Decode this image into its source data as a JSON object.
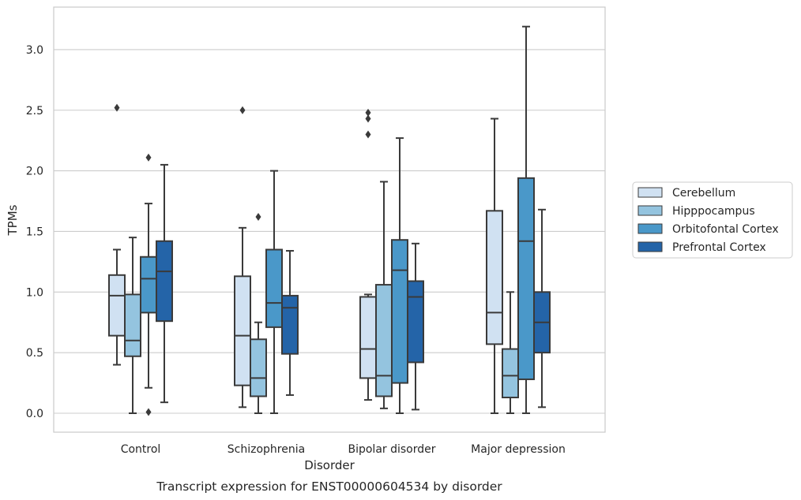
{
  "chart_data": {
    "type": "box",
    "xlabel": "Disorder",
    "ylabel": "TPMs",
    "caption": "Transcript expression for ENST00000604534 by disorder",
    "ylim": [
      -0.15,
      3.35
    ],
    "yticks": [
      "0.0",
      "0.5",
      "1.0",
      "1.5",
      "2.0",
      "2.5",
      "3.0"
    ],
    "grid": "horizontal",
    "legend_position": "right",
    "categories": [
      "Control",
      "Schizophrenia",
      "Bipolar disorder",
      "Major depression"
    ],
    "series": [
      {
        "name": "Cerebellum",
        "color": "#d0e1f2",
        "boxes": [
          {
            "whislo": 0.4,
            "q1": 0.64,
            "med": 0.97,
            "q3": 1.14,
            "whishi": 1.35,
            "fliers": [
              2.52
            ]
          },
          {
            "whislo": 0.05,
            "q1": 0.23,
            "med": 0.64,
            "q3": 1.13,
            "whishi": 1.53,
            "fliers": [
              2.5
            ]
          },
          {
            "whislo": 0.11,
            "q1": 0.29,
            "med": 0.53,
            "q3": 0.96,
            "whishi": 0.98,
            "fliers": [
              2.3,
              2.43,
              2.48
            ]
          },
          {
            "whislo": 0.0,
            "q1": 0.57,
            "med": 0.83,
            "q3": 1.67,
            "whishi": 2.43,
            "fliers": []
          }
        ]
      },
      {
        "name": "Hipppocampus",
        "color": "#94c4df",
        "boxes": [
          {
            "whislo": 0.0,
            "q1": 0.47,
            "med": 0.6,
            "q3": 0.98,
            "whishi": 1.45,
            "fliers": []
          },
          {
            "whislo": 0.0,
            "q1": 0.14,
            "med": 0.29,
            "q3": 0.61,
            "whishi": 0.75,
            "fliers": [
              1.62
            ]
          },
          {
            "whislo": 0.04,
            "q1": 0.14,
            "med": 0.31,
            "q3": 1.06,
            "whishi": 1.91,
            "fliers": []
          },
          {
            "whislo": 0.0,
            "q1": 0.13,
            "med": 0.31,
            "q3": 0.53,
            "whishi": 1.0,
            "fliers": []
          }
        ]
      },
      {
        "name": "Orbitofontal Cortex",
        "color": "#4a98c9",
        "boxes": [
          {
            "whislo": 0.21,
            "q1": 0.83,
            "med": 1.11,
            "q3": 1.29,
            "whishi": 1.73,
            "fliers": [
              0.01,
              2.11
            ]
          },
          {
            "whislo": 0.0,
            "q1": 0.71,
            "med": 0.91,
            "q3": 1.35,
            "whishi": 2.0,
            "fliers": []
          },
          {
            "whislo": 0.0,
            "q1": 0.25,
            "med": 1.18,
            "q3": 1.43,
            "whishi": 2.27,
            "fliers": []
          },
          {
            "whislo": 0.0,
            "q1": 0.28,
            "med": 1.42,
            "q3": 1.94,
            "whishi": 3.19,
            "fliers": []
          }
        ]
      },
      {
        "name": "Prefrontal Cortex",
        "color": "#2464a8",
        "boxes": [
          {
            "whislo": 0.09,
            "q1": 0.76,
            "med": 1.17,
            "q3": 1.42,
            "whishi": 2.05,
            "fliers": []
          },
          {
            "whislo": 0.15,
            "q1": 0.49,
            "med": 0.87,
            "q3": 0.97,
            "whishi": 1.34,
            "fliers": []
          },
          {
            "whislo": 0.03,
            "q1": 0.42,
            "med": 0.96,
            "q3": 1.09,
            "whishi": 1.4,
            "fliers": []
          },
          {
            "whislo": 0.05,
            "q1": 0.5,
            "med": 0.75,
            "q3": 1.0,
            "whishi": 1.68,
            "fliers": []
          }
        ]
      }
    ]
  }
}
